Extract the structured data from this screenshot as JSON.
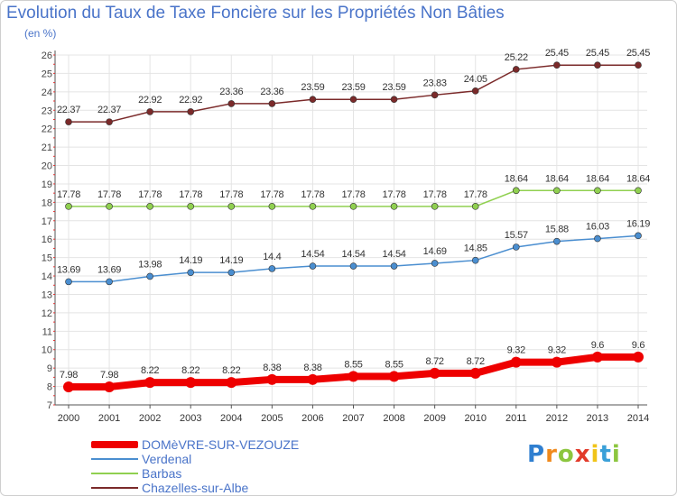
{
  "chart_data": {
    "type": "line",
    "title": "Evolution du Taux de Taxe Foncière sur les Propriétés Non Bâties",
    "unit_label": "(en %)",
    "categories": [
      "2000",
      "2001",
      "2002",
      "2003",
      "2004",
      "2005",
      "2006",
      "2007",
      "2008",
      "2009",
      "2010",
      "2011",
      "2012",
      "2013",
      "2014"
    ],
    "ylim": [
      7,
      26
    ],
    "yticks": [
      "7",
      "8",
      "9",
      "10",
      "11",
      "12",
      "13",
      "14",
      "15",
      "16",
      "17",
      "18",
      "19",
      "20",
      "21",
      "22",
      "23",
      "24",
      "25",
      "26"
    ],
    "series": [
      {
        "name": "Chazelles-sur-Albe",
        "color": "#7b2a2a",
        "values": [
          22.37,
          22.37,
          22.92,
          22.92,
          23.36,
          23.36,
          23.59,
          23.59,
          23.59,
          23.83,
          24.05,
          25.22,
          25.45,
          25.45,
          25.45
        ],
        "labels": [
          "22.37",
          "22.37",
          "22.92",
          "22.92",
          "23.36",
          "23.36",
          "23.59",
          "23.59",
          "23.59",
          "23.83",
          "24.05",
          "25.22",
          "25.45",
          "25.45",
          "25.45"
        ]
      },
      {
        "name": "Barbas",
        "color": "#90d050",
        "values": [
          17.78,
          17.78,
          17.78,
          17.78,
          17.78,
          17.78,
          17.78,
          17.78,
          17.78,
          17.78,
          17.78,
          18.64,
          18.64,
          18.64,
          18.64
        ],
        "labels": [
          "17.78",
          "17.78",
          "17.78",
          "17.78",
          "17.78",
          "17.78",
          "17.78",
          "17.78",
          "17.78",
          "17.78",
          "17.78",
          "18.64",
          "18.64",
          "18.64",
          "18.64"
        ]
      },
      {
        "name": "Verdenal",
        "color": "#4a8ed0",
        "values": [
          13.69,
          13.69,
          13.98,
          14.19,
          14.19,
          14.4,
          14.54,
          14.54,
          14.54,
          14.69,
          14.85,
          15.57,
          15.88,
          16.03,
          16.19
        ],
        "labels": [
          "13.69",
          "13.69",
          "13.98",
          "14.19",
          "14.19",
          "14.4",
          "14.54",
          "14.54",
          "14.54",
          "14.69",
          "14.85",
          "15.57",
          "15.88",
          "16.03",
          "16.19"
        ]
      },
      {
        "name": "DOMèVRE-SUR-VEZOUZE",
        "color": "#ee0000",
        "values": [
          7.98,
          7.98,
          8.22,
          8.22,
          8.22,
          8.38,
          8.38,
          8.55,
          8.55,
          8.72,
          8.72,
          9.32,
          9.32,
          9.6,
          9.6
        ],
        "labels": [
          "7.98",
          "7.98",
          "8.22",
          "8.22",
          "8.22",
          "8.38",
          "8.38",
          "8.55",
          "8.55",
          "8.72",
          "8.72",
          "9.32",
          "9.32",
          "9.6",
          "9.6"
        ]
      }
    ]
  },
  "legend": {
    "items": [
      {
        "label": "DOMèVRE-SUR-VEZOUZE",
        "color": "#ee0000"
      },
      {
        "label": "Verdenal",
        "color": "#4a8ed0"
      },
      {
        "label": "Barbas",
        "color": "#90d050"
      },
      {
        "label": "Chazelles-sur-Albe",
        "color": "#7b2a2a"
      }
    ]
  },
  "logo": {
    "letters": [
      "P",
      "r",
      "o",
      "x",
      "i",
      "t",
      "i"
    ],
    "colors": [
      "#2f7fd0",
      "#f08a1c",
      "#8cc63f",
      "#e23a2a",
      "#f0c419",
      "#3aa0d8",
      "#8cc63f"
    ]
  }
}
